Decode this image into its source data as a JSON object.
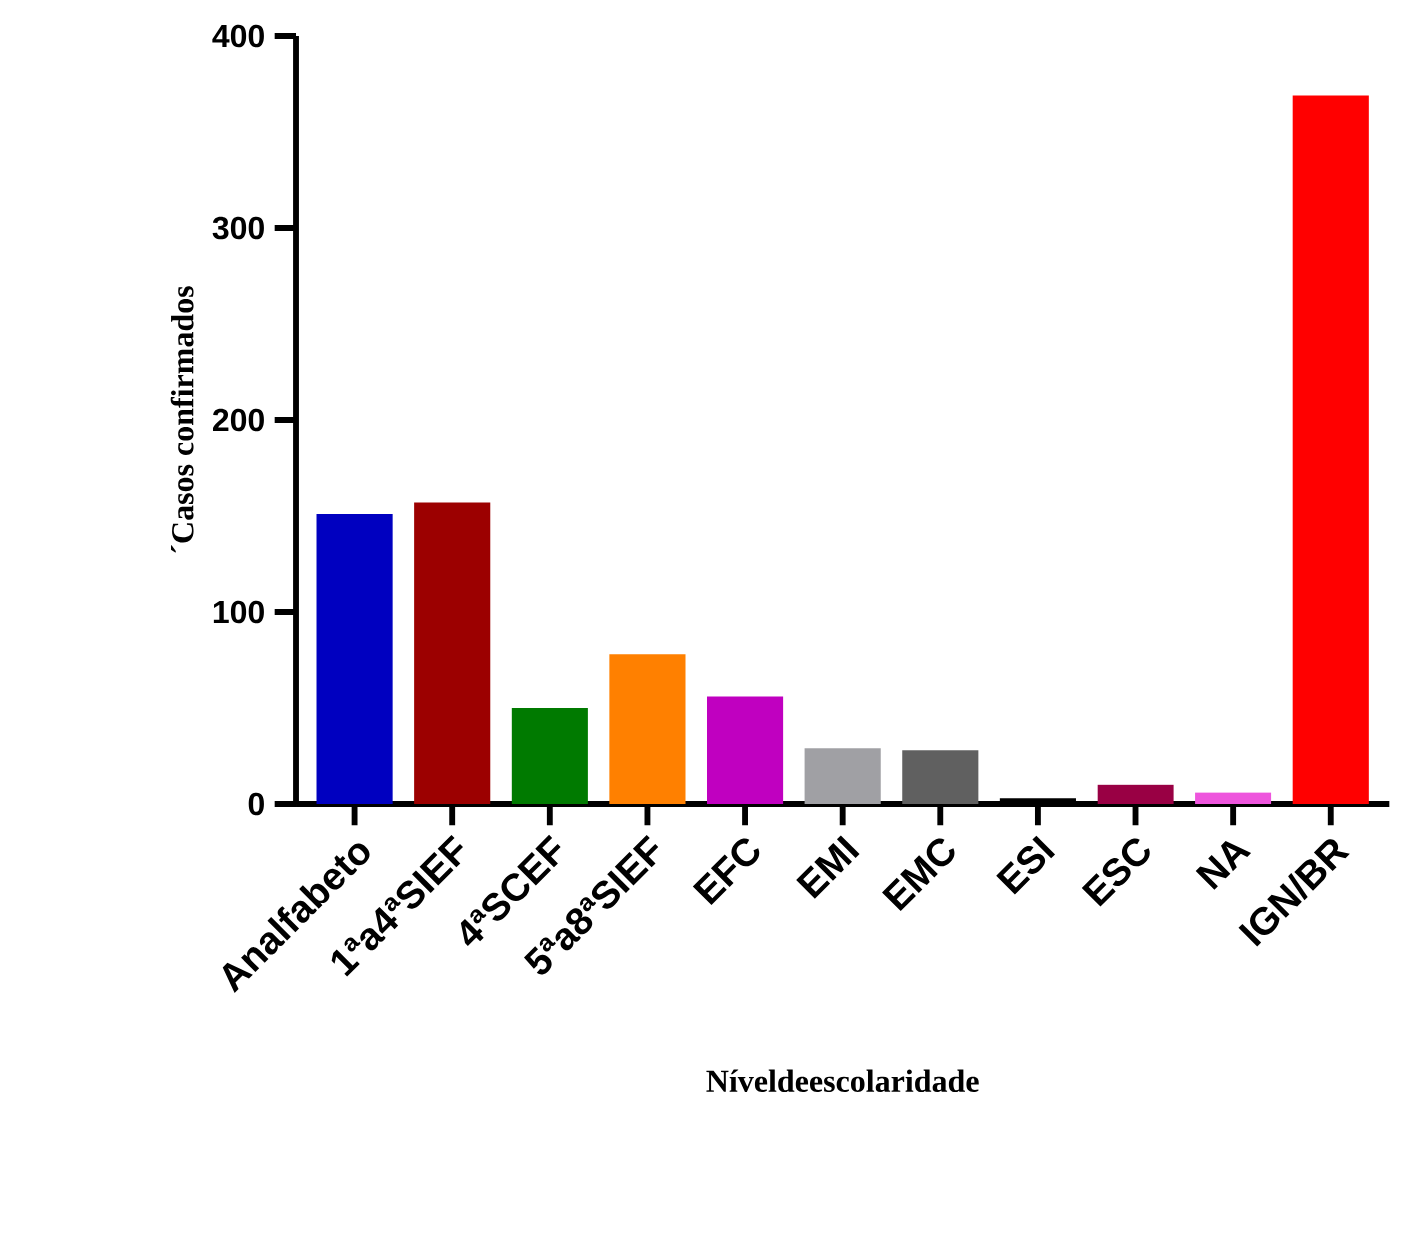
{
  "chart_data": {
    "type": "bar",
    "xlabel": "Níveldeescolaridade",
    "ylabel": "´Casos confirmados",
    "categories": [
      "Analfabeto",
      "1ªa4ªSIEF",
      "4ªSCEF",
      "5ªa8ªSIEF",
      "EFC",
      "EMI",
      "EMC",
      "ESI",
      "ESC",
      "NA",
      "IGN/BR"
    ],
    "values": [
      151,
      157,
      50,
      78,
      56,
      29,
      28,
      3,
      10,
      6,
      369
    ],
    "colors": [
      "#0000c0",
      "#9c0000",
      "#007a00",
      "#ff8000",
      "#c000c0",
      "#a0a0a4",
      "#606060",
      "#000000",
      "#990044",
      "#ee55dd",
      "#ff0000"
    ],
    "ylim": [
      0,
      400
    ],
    "yticks": [
      0,
      100,
      200,
      300,
      400
    ],
    "grid": false
  }
}
